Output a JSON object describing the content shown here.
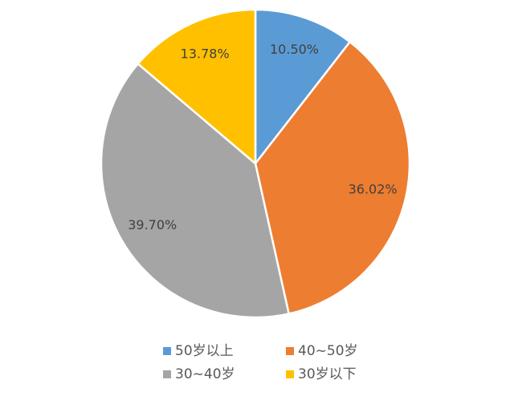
{
  "chart_data": {
    "type": "pie",
    "categories": [
      "50岁以上",
      "40~50岁",
      "30~40岁",
      "30岁以下"
    ],
    "values": [
      10.5,
      36.02,
      39.7,
      13.78
    ],
    "value_labels": [
      "10.50%",
      "36.02%",
      "39.70%",
      "13.78%"
    ],
    "colors": [
      "#5b9bd5",
      "#ed7d31",
      "#a5a5a5",
      "#ffc000"
    ],
    "legend": "bottom"
  }
}
